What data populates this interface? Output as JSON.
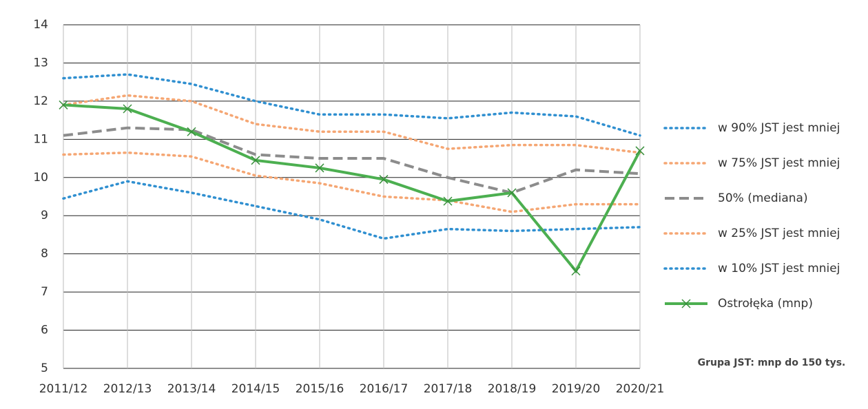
{
  "chart_data": {
    "type": "line",
    "categories": [
      "2011/12",
      "2012/13",
      "2013/14",
      "2014/15",
      "2015/16",
      "2016/17",
      "2017/18",
      "2018/19",
      "2019/20",
      "2020/21"
    ],
    "series": [
      {
        "name": "w 90% JST jest mniej",
        "color": "#2f8fd0",
        "style": "dotted",
        "values": [
          12.6,
          12.7,
          12.45,
          12.0,
          11.65,
          11.65,
          11.55,
          11.7,
          11.6,
          11.1
        ]
      },
      {
        "name": "w 75% JST jest mniej",
        "color": "#f5a673",
        "style": "dotted",
        "values": [
          11.9,
          12.15,
          12.0,
          11.4,
          11.2,
          11.2,
          10.75,
          10.85,
          10.85,
          10.65
        ]
      },
      {
        "name": "50% (mediana)",
        "color": "#8c8c8c",
        "style": "dashed",
        "values": [
          11.1,
          11.3,
          11.25,
          10.6,
          10.5,
          10.5,
          10.0,
          9.6,
          10.2,
          10.1
        ]
      },
      {
        "name": "w 25% JST jest mniej",
        "color": "#f5a673",
        "style": "dotted",
        "values": [
          10.6,
          10.65,
          10.55,
          10.05,
          9.85,
          9.5,
          9.4,
          9.1,
          9.3,
          9.3
        ]
      },
      {
        "name": "w 10% JST jest mniej",
        "color": "#2f8fd0",
        "style": "dotted",
        "values": [
          9.45,
          9.9,
          9.6,
          9.25,
          8.9,
          8.4,
          8.65,
          8.6,
          8.65,
          8.7
        ]
      },
      {
        "name": "Ostrołęka (mnp)",
        "color": "#4caf50",
        "style": "solid",
        "marker": "x",
        "values": [
          11.9,
          11.8,
          11.2,
          10.45,
          10.25,
          9.95,
          9.38,
          9.6,
          7.55,
          10.7
        ]
      }
    ],
    "ylim": [
      5,
      14
    ],
    "yticks": [
      5,
      6,
      7,
      8,
      9,
      10,
      11,
      12,
      13,
      14
    ],
    "grid": true,
    "legend": "right",
    "annotation": "Grupa JST: mnp do 150 tys."
  }
}
